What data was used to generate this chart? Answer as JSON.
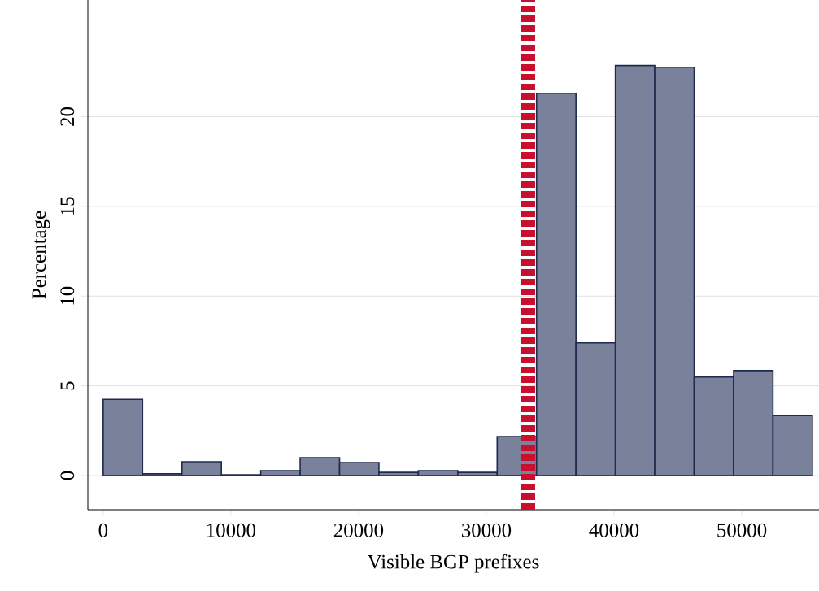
{
  "chart_data": {
    "type": "histogram",
    "xlabel": "Visible BGP prefixes",
    "ylabel": "Percentage",
    "bins": [
      0,
      3085,
      6170,
      9255,
      12340,
      15425,
      18510,
      21595,
      24680,
      27765,
      30850,
      33935,
      37020,
      40105,
      43190,
      46275,
      49360,
      52445,
      55530
    ],
    "values": [
      4.25,
      0.1,
      0.77,
      0.05,
      0.27,
      1.0,
      0.72,
      0.18,
      0.27,
      0.18,
      2.17,
      21.3,
      7.4,
      22.85,
      22.75,
      5.5,
      5.85,
      3.35
    ],
    "color": "#7a819a",
    "xlim": [
      -1200,
      56050
    ],
    "ylim": [
      -1.9,
      26.5
    ],
    "xticks": [
      0,
      10000,
      20000,
      30000,
      40000,
      50000
    ],
    "yticks": [
      0,
      5,
      10,
      15,
      20
    ],
    "grid": "y",
    "ref_lines": [
      {
        "axis": "x",
        "value": 33250,
        "color": "#c8102e",
        "line_style": "dashed"
      }
    ]
  }
}
